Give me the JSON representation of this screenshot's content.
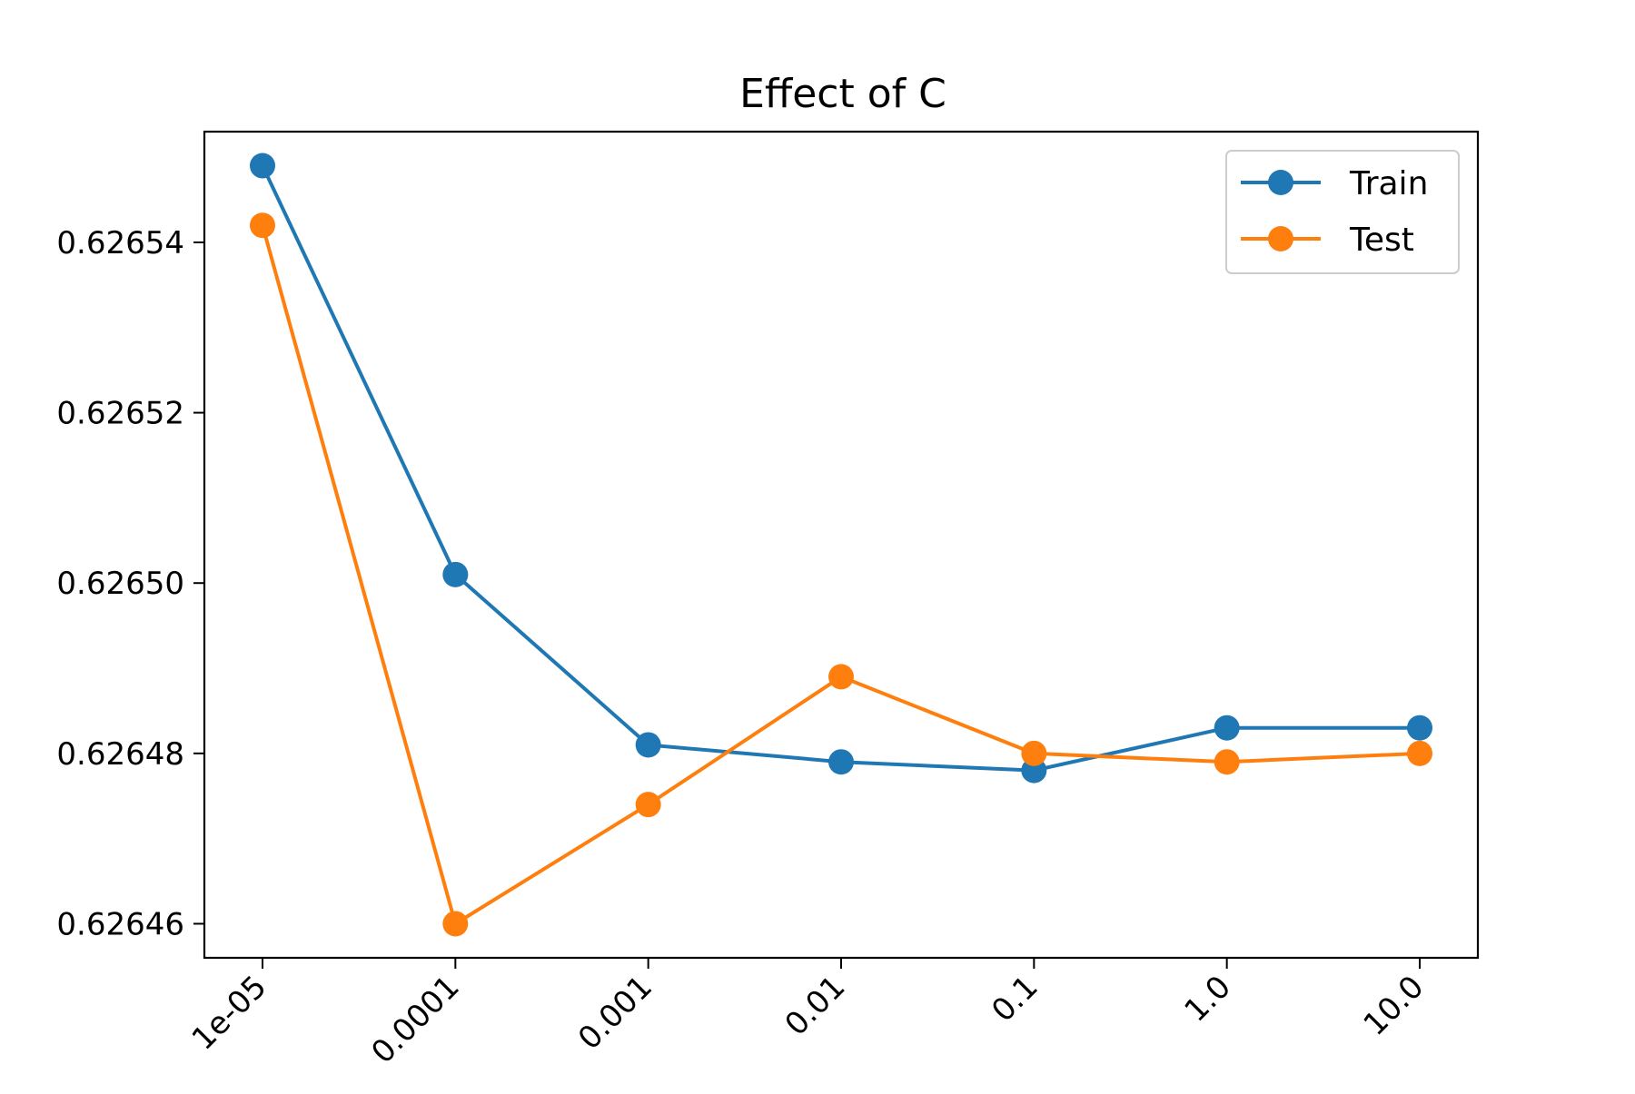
{
  "chart_data": {
    "type": "line",
    "title": "Effect of C",
    "xlabel": "",
    "ylabel": "",
    "categories": [
      "1e-05",
      "0.0001",
      "0.001",
      "0.01",
      "0.1",
      "1.0",
      "10.0"
    ],
    "ylim": [
      0.626456,
      0.626553
    ],
    "y_ticks": [
      0.62646,
      0.62648,
      0.6265,
      0.62652,
      0.62654
    ],
    "y_tick_labels": [
      "0.62646",
      "0.62648",
      "0.62650",
      "0.62652",
      "0.62654"
    ],
    "grid": false,
    "legend_position": "top-right",
    "series": [
      {
        "name": "Train",
        "color": "#1f77b4",
        "values": [
          0.626549,
          0.626501,
          0.626481,
          0.626479,
          0.626478,
          0.626483,
          0.626483
        ]
      },
      {
        "name": "Test",
        "color": "#ff7f0e",
        "values": [
          0.626542,
          0.62646,
          0.626474,
          0.626489,
          0.62648,
          0.626479,
          0.62648
        ]
      }
    ]
  }
}
